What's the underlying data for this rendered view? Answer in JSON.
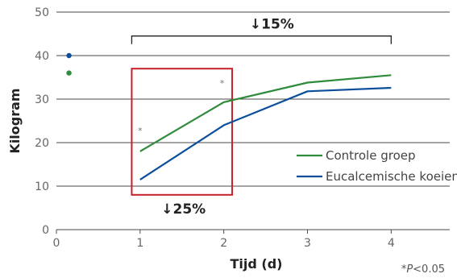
{
  "chart_data": {
    "type": "line",
    "xlabel": "Tijd (d)",
    "ylabel": "Kilogram",
    "xlim": [
      0,
      4.7
    ],
    "ylim": [
      0,
      50
    ],
    "x_ticks": [
      0,
      1,
      2,
      3,
      4
    ],
    "y_ticks": [
      0,
      10,
      20,
      30,
      40,
      50
    ],
    "grid": "horizontal",
    "legend_position": "bottom-right",
    "series": [
      {
        "name": "Controle groep",
        "color": "#2e8b3a",
        "x": [
          1,
          2,
          3,
          4
        ],
        "values": [
          18.0,
          29.3,
          33.8,
          35.5
        ],
        "start_marker": {
          "x": 0.15,
          "y": 36
        }
      },
      {
        "name": "Eucalcemische koeien",
        "color": "#0b4f9c",
        "x": [
          1,
          2,
          3,
          4
        ],
        "values": [
          11.5,
          24.0,
          31.8,
          32.6
        ],
        "start_marker": {
          "x": 0.15,
          "y": 40
        }
      }
    ],
    "annotations": {
      "top_bracket": {
        "x_from": 0.9,
        "x_to": 4.0,
        "y": 44.5,
        "label": "↓15%"
      },
      "highlight_box": {
        "x_from": 0.9,
        "x_to": 2.1,
        "y_from": 8,
        "y_to": 37,
        "color": "#c8202a",
        "label": "↓25%"
      },
      "asterisks": [
        {
          "x": 1.0,
          "y": 22,
          "text": "*"
        },
        {
          "x": 1.98,
          "y": 33,
          "text": "*"
        }
      ],
      "footnote": "*P<0.05"
    }
  }
}
